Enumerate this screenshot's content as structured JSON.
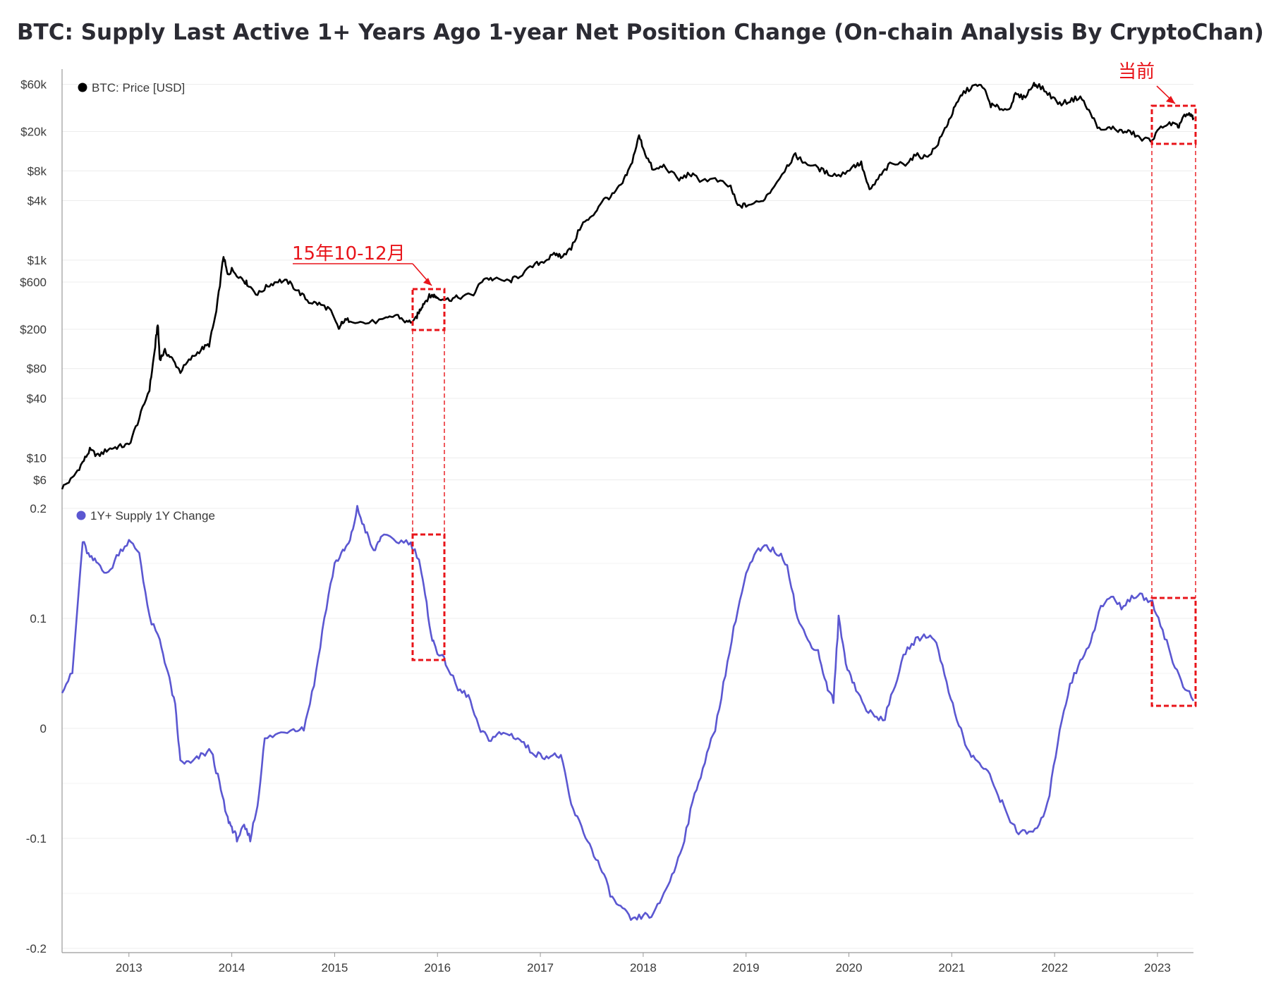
{
  "title": "BTC: Supply Last Active 1+ Years Ago 1-year Net Position Change (On-chain Analysis By CryptoChan)",
  "colors": {
    "price": "#000000",
    "supply": "#5b57d1",
    "annotation": "#e8141a",
    "grid": "#ececec"
  },
  "chart_data": [
    {
      "type": "line",
      "legend": "BTC: Price [USD]",
      "scale": "log",
      "ylim": [
        4.5,
        75000
      ],
      "y_ticks": [
        {
          "v": 6,
          "label": "$6"
        },
        {
          "v": 10,
          "label": "$10"
        },
        {
          "v": 40,
          "label": "$40"
        },
        {
          "v": 80,
          "label": "$80"
        },
        {
          "v": 200,
          "label": "$200"
        },
        {
          "v": 600,
          "label": "$600"
        },
        {
          "v": 1000,
          "label": "$1k"
        },
        {
          "v": 4000,
          "label": "$4k"
        },
        {
          "v": 8000,
          "label": "$8k"
        },
        {
          "v": 20000,
          "label": "$20k"
        },
        {
          "v": 60000,
          "label": "$60k"
        }
      ],
      "x_range": [
        2012.35,
        2023.35
      ],
      "points": [
        [
          2012.35,
          5.0
        ],
        [
          2012.45,
          6.2
        ],
        [
          2012.55,
          9.0
        ],
        [
          2012.62,
          12.0
        ],
        [
          2012.7,
          10.5
        ],
        [
          2012.8,
          12.3
        ],
        [
          2012.9,
          13.0
        ],
        [
          2013.0,
          13.5
        ],
        [
          2013.1,
          25
        ],
        [
          2013.2,
          50
        ],
        [
          2013.25,
          120
        ],
        [
          2013.28,
          230
        ],
        [
          2013.3,
          100
        ],
        [
          2013.35,
          120
        ],
        [
          2013.42,
          100
        ],
        [
          2013.5,
          75
        ],
        [
          2013.6,
          100
        ],
        [
          2013.7,
          125
        ],
        [
          2013.78,
          140
        ],
        [
          2013.85,
          300
        ],
        [
          2013.92,
          1100
        ],
        [
          2013.96,
          700
        ],
        [
          2014.0,
          800
        ],
        [
          2014.1,
          650
        ],
        [
          2014.15,
          580
        ],
        [
          2014.25,
          450
        ],
        [
          2014.35,
          550
        ],
        [
          2014.45,
          620
        ],
        [
          2014.55,
          600
        ],
        [
          2014.65,
          480
        ],
        [
          2014.75,
          380
        ],
        [
          2014.85,
          360
        ],
        [
          2014.95,
          320
        ],
        [
          2015.04,
          200
        ],
        [
          2015.08,
          240
        ],
        [
          2015.15,
          250
        ],
        [
          2015.3,
          230
        ],
        [
          2015.5,
          250
        ],
        [
          2015.6,
          280
        ],
        [
          2015.7,
          235
        ],
        [
          2015.78,
          245
        ],
        [
          2015.82,
          300
        ],
        [
          2015.86,
          360
        ],
        [
          2015.92,
          430
        ],
        [
          2015.96,
          440
        ],
        [
          2016.0,
          420
        ],
        [
          2016.1,
          400
        ],
        [
          2016.2,
          420
        ],
        [
          2016.35,
          450
        ],
        [
          2016.45,
          660
        ],
        [
          2016.55,
          640
        ],
        [
          2016.7,
          610
        ],
        [
          2016.8,
          700
        ],
        [
          2016.95,
          900
        ],
        [
          2017.05,
          1000
        ],
        [
          2017.15,
          1150
        ],
        [
          2017.2,
          1100
        ],
        [
          2017.3,
          1300
        ],
        [
          2017.4,
          2300
        ],
        [
          2017.5,
          2700
        ],
        [
          2017.6,
          4000
        ],
        [
          2017.7,
          4500
        ],
        [
          2017.8,
          6000
        ],
        [
          2017.88,
          9000
        ],
        [
          2017.96,
          18000
        ],
        [
          2018.02,
          12000
        ],
        [
          2018.1,
          8000
        ],
        [
          2018.2,
          9000
        ],
        [
          2018.35,
          6500
        ],
        [
          2018.45,
          7500
        ],
        [
          2018.55,
          6500
        ],
        [
          2018.7,
          6500
        ],
        [
          2018.85,
          5500
        ],
        [
          2018.92,
          3500
        ],
        [
          2019.0,
          3600
        ],
        [
          2019.15,
          3900
        ],
        [
          2019.25,
          5200
        ],
        [
          2019.4,
          9000
        ],
        [
          2019.48,
          11500
        ],
        [
          2019.55,
          10000
        ],
        [
          2019.7,
          8500
        ],
        [
          2019.8,
          7500
        ],
        [
          2019.92,
          7200
        ],
        [
          2020.05,
          9000
        ],
        [
          2020.12,
          9500
        ],
        [
          2020.2,
          5000
        ],
        [
          2020.3,
          7000
        ],
        [
          2020.4,
          9300
        ],
        [
          2020.55,
          9500
        ],
        [
          2020.65,
          11500
        ],
        [
          2020.75,
          11000
        ],
        [
          2020.85,
          14000
        ],
        [
          2020.95,
          23000
        ],
        [
          2021.02,
          33000
        ],
        [
          2021.1,
          48000
        ],
        [
          2021.2,
          57000
        ],
        [
          2021.3,
          58000
        ],
        [
          2021.38,
          37000
        ],
        [
          2021.45,
          35000
        ],
        [
          2021.55,
          33000
        ],
        [
          2021.62,
          47000
        ],
        [
          2021.7,
          44000
        ],
        [
          2021.8,
          60000
        ],
        [
          2021.85,
          58000
        ],
        [
          2021.95,
          47000
        ],
        [
          2022.05,
          38000
        ],
        [
          2022.15,
          41000
        ],
        [
          2022.25,
          45000
        ],
        [
          2022.35,
          30000
        ],
        [
          2022.45,
          20000
        ],
        [
          2022.55,
          22000
        ],
        [
          2022.65,
          20000
        ],
        [
          2022.75,
          19500
        ],
        [
          2022.85,
          16500
        ],
        [
          2022.95,
          16800
        ],
        [
          2023.05,
          23000
        ],
        [
          2023.15,
          24000
        ],
        [
          2023.2,
          22000
        ],
        [
          2023.25,
          28000
        ],
        [
          2023.32,
          29500
        ],
        [
          2023.35,
          27500
        ]
      ]
    },
    {
      "type": "line",
      "legend": "1Y+ Supply 1Y Change",
      "ylim": [
        -0.2,
        0.2
      ],
      "y_ticks": [
        {
          "v": 0.2,
          "label": "0.2"
        },
        {
          "v": 0.1,
          "label": "0.1"
        },
        {
          "v": 0,
          "label": "0"
        },
        {
          "v": -0.1,
          "label": "-0.1"
        },
        {
          "v": -0.2,
          "label": "-0.2"
        }
      ],
      "x_ticks": [
        "2013",
        "2014",
        "2015",
        "2016",
        "2017",
        "2018",
        "2019",
        "2020",
        "2021",
        "2022",
        "2023"
      ],
      "x_range": [
        2012.35,
        2023.35
      ],
      "points": [
        [
          2012.35,
          0.035
        ],
        [
          2012.45,
          0.05
        ],
        [
          2012.55,
          0.17
        ],
        [
          2012.62,
          0.155
        ],
        [
          2012.7,
          0.15
        ],
        [
          2012.8,
          0.14
        ],
        [
          2012.9,
          0.16
        ],
        [
          2013.0,
          0.17
        ],
        [
          2013.1,
          0.16
        ],
        [
          2013.2,
          0.1
        ],
        [
          2013.3,
          0.08
        ],
        [
          2013.38,
          0.05
        ],
        [
          2013.45,
          0.02
        ],
        [
          2013.5,
          -0.03
        ],
        [
          2013.6,
          -0.032
        ],
        [
          2013.7,
          -0.025
        ],
        [
          2013.8,
          -0.02
        ],
        [
          2013.88,
          -0.05
        ],
        [
          2013.95,
          -0.08
        ],
        [
          2014.0,
          -0.09
        ],
        [
          2014.05,
          -0.1
        ],
        [
          2014.12,
          -0.09
        ],
        [
          2014.18,
          -0.1
        ],
        [
          2014.25,
          -0.07
        ],
        [
          2014.32,
          -0.01
        ],
        [
          2014.45,
          -0.005
        ],
        [
          2014.6,
          0.0
        ],
        [
          2014.7,
          0.0
        ],
        [
          2014.8,
          0.04
        ],
        [
          2014.9,
          0.1
        ],
        [
          2015.0,
          0.15
        ],
        [
          2015.08,
          0.16
        ],
        [
          2015.15,
          0.17
        ],
        [
          2015.22,
          0.2
        ],
        [
          2015.3,
          0.18
        ],
        [
          2015.38,
          0.16
        ],
        [
          2015.45,
          0.175
        ],
        [
          2015.6,
          0.17
        ],
        [
          2015.72,
          0.17
        ],
        [
          2015.82,
          0.155
        ],
        [
          2015.88,
          0.12
        ],
        [
          2015.95,
          0.08
        ],
        [
          2016.0,
          0.07
        ],
        [
          2016.08,
          0.06
        ],
        [
          2016.2,
          0.035
        ],
        [
          2016.3,
          0.03
        ],
        [
          2016.4,
          0.0
        ],
        [
          2016.5,
          -0.01
        ],
        [
          2016.6,
          -0.005
        ],
        [
          2016.7,
          -0.005
        ],
        [
          2016.8,
          -0.01
        ],
        [
          2016.9,
          -0.02
        ],
        [
          2017.0,
          -0.025
        ],
        [
          2017.1,
          -0.025
        ],
        [
          2017.2,
          -0.025
        ],
        [
          2017.3,
          -0.07
        ],
        [
          2017.4,
          -0.09
        ],
        [
          2017.5,
          -0.11
        ],
        [
          2017.6,
          -0.13
        ],
        [
          2017.7,
          -0.155
        ],
        [
          2017.8,
          -0.165
        ],
        [
          2017.9,
          -0.175
        ],
        [
          2018.0,
          -0.17
        ],
        [
          2018.1,
          -0.17
        ],
        [
          2018.2,
          -0.15
        ],
        [
          2018.3,
          -0.13
        ],
        [
          2018.4,
          -0.1
        ],
        [
          2018.5,
          -0.06
        ],
        [
          2018.6,
          -0.03
        ],
        [
          2018.7,
          0.0
        ],
        [
          2018.8,
          0.05
        ],
        [
          2018.9,
          0.1
        ],
        [
          2019.0,
          0.14
        ],
        [
          2019.1,
          0.16
        ],
        [
          2019.2,
          0.165
        ],
        [
          2019.3,
          0.16
        ],
        [
          2019.4,
          0.15
        ],
        [
          2019.5,
          0.1
        ],
        [
          2019.6,
          0.08
        ],
        [
          2019.7,
          0.07
        ],
        [
          2019.78,
          0.04
        ],
        [
          2019.85,
          0.025
        ],
        [
          2019.9,
          0.1
        ],
        [
          2019.97,
          0.06
        ],
        [
          2020.05,
          0.04
        ],
        [
          2020.15,
          0.02
        ],
        [
          2020.25,
          0.01
        ],
        [
          2020.35,
          0.01
        ],
        [
          2020.45,
          0.04
        ],
        [
          2020.55,
          0.07
        ],
        [
          2020.65,
          0.08
        ],
        [
          2020.75,
          0.085
        ],
        [
          2020.85,
          0.08
        ],
        [
          2020.95,
          0.04
        ],
        [
          2021.05,
          0.01
        ],
        [
          2021.15,
          -0.02
        ],
        [
          2021.25,
          -0.03
        ],
        [
          2021.35,
          -0.04
        ],
        [
          2021.45,
          -0.06
        ],
        [
          2021.55,
          -0.08
        ],
        [
          2021.65,
          -0.095
        ],
        [
          2021.75,
          -0.095
        ],
        [
          2021.85,
          -0.09
        ],
        [
          2021.95,
          -0.06
        ],
        [
          2022.05,
          0.0
        ],
        [
          2022.15,
          0.04
        ],
        [
          2022.25,
          0.06
        ],
        [
          2022.35,
          0.08
        ],
        [
          2022.45,
          0.11
        ],
        [
          2022.55,
          0.12
        ],
        [
          2022.65,
          0.11
        ],
        [
          2022.75,
          0.12
        ],
        [
          2022.85,
          0.12
        ],
        [
          2022.95,
          0.115
        ],
        [
          2023.05,
          0.09
        ],
        [
          2023.15,
          0.06
        ],
        [
          2023.25,
          0.04
        ],
        [
          2023.35,
          0.025
        ]
      ]
    }
  ],
  "annotations": {
    "box1_label": "15年10-12月",
    "box2_label": "当前"
  }
}
